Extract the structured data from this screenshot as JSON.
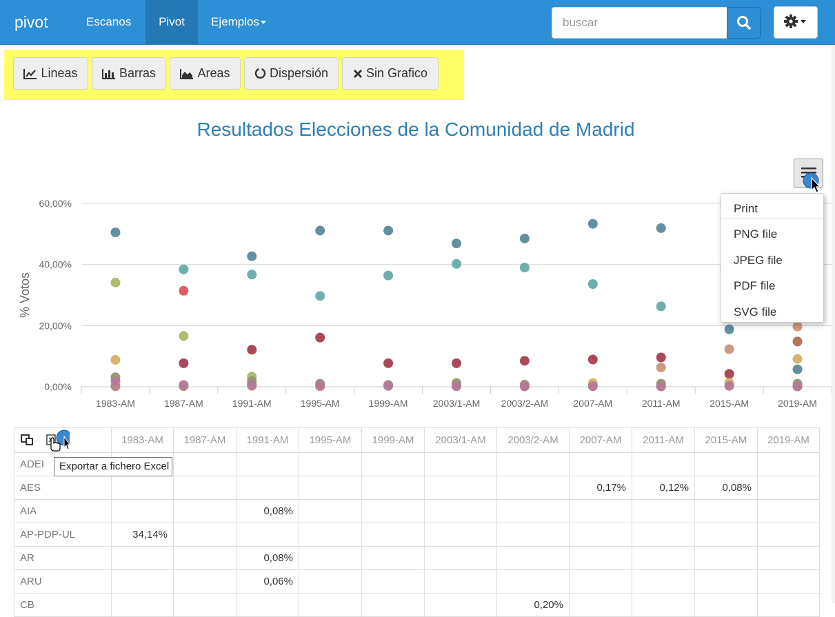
{
  "navbar": {
    "brand": "pivot",
    "items": [
      {
        "label": "Escanos"
      },
      {
        "label": "Pivot"
      },
      {
        "label": "Ejemplos"
      }
    ],
    "search_placeholder": "buscar"
  },
  "toolbar": {
    "buttons": [
      {
        "label": "Lineas",
        "icon": "line-chart-icon"
      },
      {
        "label": "Barras",
        "icon": "bar-chart-icon"
      },
      {
        "label": "Areas",
        "icon": "area-chart-icon"
      },
      {
        "label": "Dispersión",
        "icon": "circle-notch-icon"
      },
      {
        "label": "Sin Grafico",
        "icon": "close-icon"
      }
    ],
    "highlight_color": "#ffff66"
  },
  "export_menu": {
    "items": [
      "Print",
      "PNG file",
      "JPEG file",
      "PDF file",
      "SVG file"
    ]
  },
  "chart_data": {
    "type": "scatter",
    "title": "Resultados Elecciones de la Comunidad de Madrid",
    "ylabel": "% Votos",
    "ytick_labels": [
      "0,00%",
      "20,00%",
      "40,00%",
      "60,00%"
    ],
    "ylim": [
      0,
      60
    ],
    "categories": [
      "1983-AM",
      "1987-AM",
      "1991-AM",
      "1995-AM",
      "1999-AM",
      "2003/1-AM",
      "2003/2-AM",
      "2007-AM",
      "2011-AM",
      "2015-AM",
      "2019-AM"
    ],
    "series": [
      {
        "color": "#5b8a9c",
        "values": [
          50.5,
          null,
          42.7,
          51.1,
          51.1,
          46.9,
          48.5,
          53.3,
          51.9,
          18.8,
          5.7
        ]
      },
      {
        "color": "#66aaa8",
        "values": [
          null,
          38.4,
          36.7,
          29.7,
          36.4,
          40.2,
          39.0,
          33.6,
          26.3,
          null,
          null
        ]
      },
      {
        "color": "#a8b86c",
        "values": [
          34.1,
          16.6,
          3.3,
          null,
          null,
          null,
          null,
          null,
          null,
          null,
          null
        ]
      },
      {
        "color": "#e05555",
        "values": [
          null,
          31.4,
          null,
          null,
          null,
          null,
          null,
          null,
          null,
          null,
          null
        ]
      },
      {
        "color": "#a54050",
        "values": [
          null,
          7.7,
          12.1,
          16.1,
          7.7,
          7.7,
          8.5,
          8.9,
          9.6,
          4.2,
          null
        ]
      },
      {
        "color": "#d4b068",
        "values": [
          8.8,
          null,
          null,
          null,
          null,
          null,
          null,
          1.2,
          null,
          1.3,
          9.1
        ]
      },
      {
        "color": "#c9937a",
        "values": [
          null,
          null,
          null,
          null,
          null,
          null,
          null,
          null,
          6.3,
          12.3,
          19.7
        ]
      },
      {
        "color": "#b07050",
        "values": [
          null,
          null,
          null,
          null,
          null,
          null,
          null,
          null,
          null,
          null,
          14.8
        ]
      },
      {
        "color": "#8a9a6a",
        "values": [
          3.1,
          null,
          1.9,
          1.0,
          0.6,
          1.2,
          0.7,
          null,
          1.0,
          null,
          1.0
        ]
      },
      {
        "color": "#b88080",
        "values": [
          0.2,
          0.2,
          0.3,
          0.2,
          0.3,
          0.3,
          0.3,
          0.2,
          0.2,
          0.3,
          0.2
        ]
      },
      {
        "color": "#b47a9a",
        "values": [
          1.8,
          0.6,
          0.8,
          0.5,
          0.3,
          0.2,
          0.1,
          0.2,
          0.1,
          0.3,
          0.1
        ]
      }
    ]
  },
  "table": {
    "columns": [
      "1983-AM",
      "1987-AM",
      "1991-AM",
      "1995-AM",
      "1999-AM",
      "2003/1-AM",
      "2003/2-AM",
      "2007-AM",
      "2011-AM",
      "2015-AM",
      "2019-AM"
    ],
    "rows": [
      {
        "name": "ADEI",
        "values": [
          "",
          "",
          "",
          "",
          "",
          "",
          "",
          "",
          "",
          "",
          ""
        ]
      },
      {
        "name": "AES",
        "values": [
          "",
          "",
          "",
          "",
          "",
          "",
          "",
          "0,17%",
          "0,12%",
          "0,08%",
          ""
        ]
      },
      {
        "name": "AIA",
        "values": [
          "",
          "",
          "0,08%",
          "",
          "",
          "",
          "",
          "",
          "",
          "",
          ""
        ]
      },
      {
        "name": "AP-PDP-UL",
        "values": [
          "34,14%",
          "",
          "",
          "",
          "",
          "",
          "",
          "",
          "",
          "",
          ""
        ]
      },
      {
        "name": "AR",
        "values": [
          "",
          "",
          "0,08%",
          "",
          "",
          "",
          "",
          "",
          "",
          "",
          ""
        ]
      },
      {
        "name": "ARU",
        "values": [
          "",
          "",
          "0,06%",
          "",
          "",
          "",
          "",
          "",
          "",
          "",
          ""
        ]
      },
      {
        "name": "CB",
        "values": [
          "",
          "",
          "",
          "",
          "",
          "",
          "0,20%",
          "",
          "",
          "",
          ""
        ]
      }
    ],
    "tooltip": "Exportar a fichero Excel"
  }
}
